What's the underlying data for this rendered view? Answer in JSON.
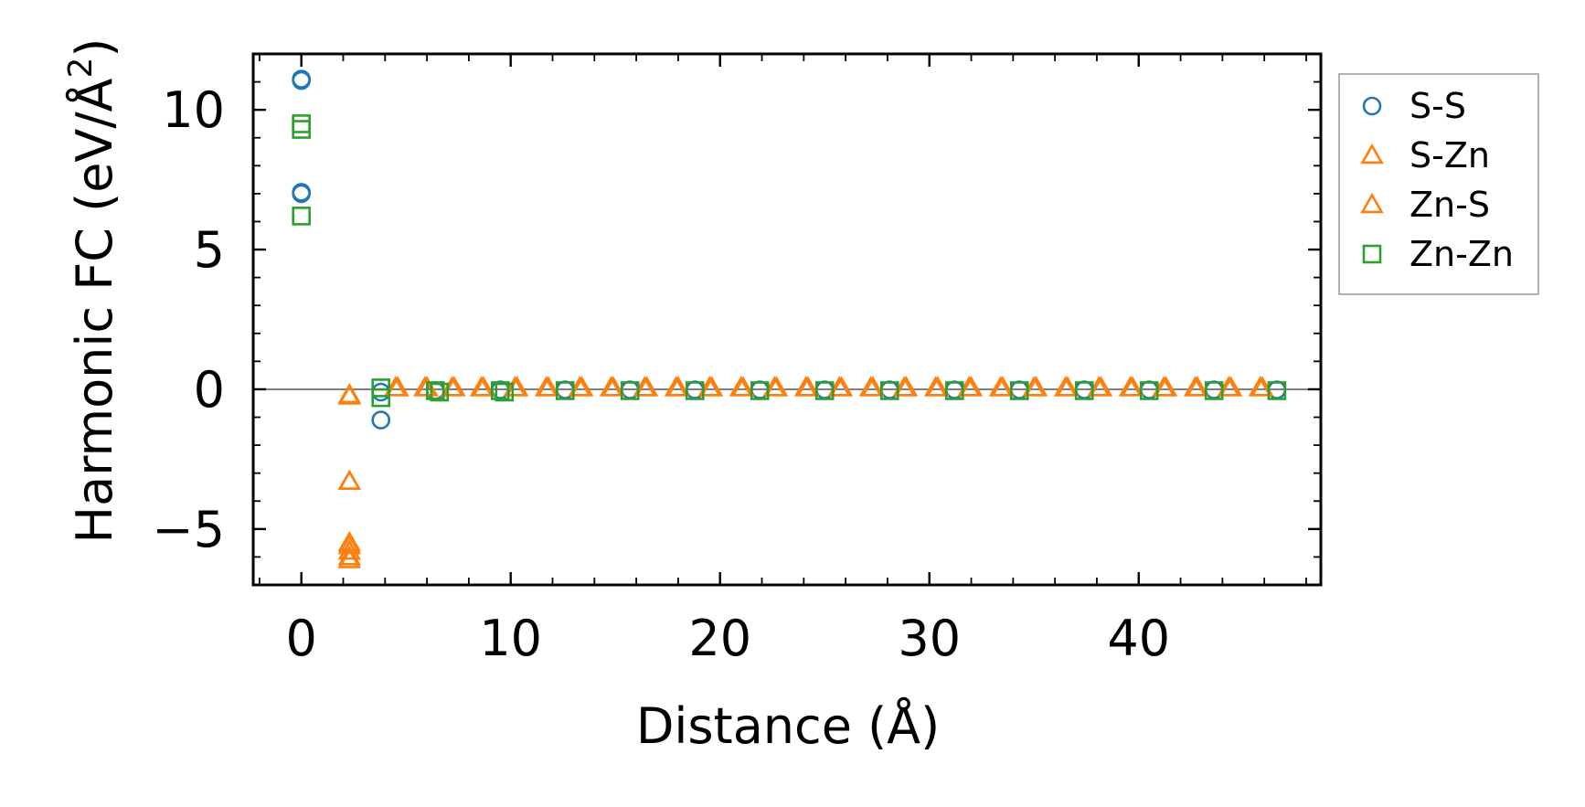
{
  "chart_data": {
    "type": "scatter",
    "title": "",
    "xlabel": "Distance (Å)",
    "ylabel": "Harmonic FC (eV/Å²)",
    "ylabel_main": "Harmonic FC (eV/Å",
    "ylabel_sup": "2",
    "ylabel_close": ")",
    "xlim": [
      -2.3,
      48.7
    ],
    "ylim": [
      -7.0,
      12.0
    ],
    "xticks": [
      0,
      10,
      20,
      30,
      40
    ],
    "xtick_labels": [
      "0",
      "10",
      "20",
      "30",
      "40"
    ],
    "yticks": [
      -5,
      0,
      5,
      10
    ],
    "ytick_labels": [
      "−5",
      "0",
      "5",
      "10"
    ],
    "x_minor_step": 2,
    "y_minor_step": 1,
    "zero_line": true,
    "grid": false,
    "legend_position": "outside-right",
    "series": [
      {
        "name": "S-S",
        "marker": "circle",
        "color": "#1f77b4",
        "points": [
          [
            0,
            11.1
          ],
          [
            0,
            11.05
          ],
          [
            0,
            7.05
          ],
          [
            0,
            7.0
          ],
          [
            3.8,
            -1.1
          ],
          [
            3.8,
            -0.1
          ],
          [
            6.4,
            -0.05
          ],
          [
            9.5,
            -0.02
          ],
          [
            12.6,
            -0.02
          ],
          [
            15.7,
            -0.02
          ],
          [
            18.8,
            -0.02
          ],
          [
            21.9,
            -0.02
          ],
          [
            25.0,
            -0.02
          ],
          [
            28.1,
            -0.02
          ],
          [
            31.2,
            -0.02
          ],
          [
            34.3,
            -0.02
          ],
          [
            37.4,
            -0.02
          ],
          [
            40.5,
            -0.02
          ],
          [
            43.6,
            -0.02
          ],
          [
            46.6,
            -0.02
          ]
        ]
      },
      {
        "name": "S-Zn",
        "marker": "triangle",
        "color": "#ff7f0e",
        "points": [
          [
            2.3,
            -0.2
          ],
          [
            2.3,
            -3.3
          ],
          [
            2.3,
            -5.5
          ],
          [
            2.3,
            -5.8
          ],
          [
            2.3,
            -6.0
          ],
          [
            4.5,
            0.05
          ],
          [
            5.9,
            0.05
          ],
          [
            7.2,
            0.05
          ],
          [
            8.6,
            0.05
          ],
          [
            10.2,
            0.05
          ],
          [
            11.7,
            0.05
          ],
          [
            13.3,
            0.05
          ],
          [
            14.8,
            0.05
          ],
          [
            16.4,
            0.05
          ],
          [
            17.9,
            0.05
          ],
          [
            19.5,
            0.05
          ],
          [
            21.0,
            0.05
          ],
          [
            22.6,
            0.05
          ],
          [
            24.1,
            0.05
          ],
          [
            25.7,
            0.05
          ],
          [
            27.2,
            0.05
          ],
          [
            28.8,
            0.05
          ],
          [
            30.3,
            0.05
          ],
          [
            31.9,
            0.05
          ],
          [
            33.4,
            0.05
          ],
          [
            35.0,
            0.05
          ],
          [
            36.5,
            0.05
          ],
          [
            38.1,
            0.05
          ],
          [
            39.6,
            0.05
          ],
          [
            41.2,
            0.05
          ],
          [
            42.7,
            0.05
          ],
          [
            44.3,
            0.05
          ],
          [
            45.8,
            0.05
          ]
        ]
      },
      {
        "name": "Zn-S",
        "marker": "triangle",
        "color": "#ff7f0e",
        "points": [
          [
            2.3,
            -0.25
          ],
          [
            2.3,
            -3.3
          ],
          [
            2.3,
            -5.6
          ],
          [
            2.3,
            -6.1
          ],
          [
            4.6,
            0.05
          ],
          [
            6.0,
            0.05
          ],
          [
            7.3,
            0.05
          ],
          [
            8.7,
            0.05
          ],
          [
            10.3,
            0.05
          ],
          [
            11.8,
            0.05
          ],
          [
            13.4,
            0.05
          ],
          [
            14.9,
            0.05
          ],
          [
            16.5,
            0.05
          ],
          [
            18.0,
            0.05
          ],
          [
            19.6,
            0.05
          ],
          [
            21.1,
            0.05
          ],
          [
            22.7,
            0.05
          ],
          [
            24.2,
            0.05
          ],
          [
            25.8,
            0.05
          ],
          [
            27.3,
            0.05
          ],
          [
            28.9,
            0.05
          ],
          [
            30.4,
            0.05
          ],
          [
            32.0,
            0.05
          ],
          [
            33.5,
            0.05
          ],
          [
            35.1,
            0.05
          ],
          [
            36.6,
            0.05
          ],
          [
            38.2,
            0.05
          ],
          [
            39.7,
            0.05
          ],
          [
            41.3,
            0.05
          ],
          [
            42.8,
            0.05
          ],
          [
            44.4,
            0.05
          ],
          [
            45.9,
            0.05
          ]
        ]
      },
      {
        "name": "Zn-Zn",
        "marker": "square",
        "color": "#2ca02c",
        "points": [
          [
            0,
            9.5
          ],
          [
            0,
            9.3
          ],
          [
            0,
            6.2
          ],
          [
            3.8,
            0.05
          ],
          [
            3.8,
            -0.3
          ],
          [
            6.4,
            -0.05
          ],
          [
            6.6,
            -0.1
          ],
          [
            9.5,
            -0.05
          ],
          [
            9.7,
            -0.1
          ],
          [
            12.6,
            -0.05
          ],
          [
            15.7,
            -0.05
          ],
          [
            18.8,
            -0.05
          ],
          [
            21.9,
            -0.05
          ],
          [
            25.0,
            -0.05
          ],
          [
            28.1,
            -0.05
          ],
          [
            31.2,
            -0.05
          ],
          [
            34.3,
            -0.05
          ],
          [
            37.4,
            -0.05
          ],
          [
            40.5,
            -0.05
          ],
          [
            43.6,
            -0.05
          ],
          [
            46.6,
            -0.05
          ]
        ]
      }
    ]
  }
}
